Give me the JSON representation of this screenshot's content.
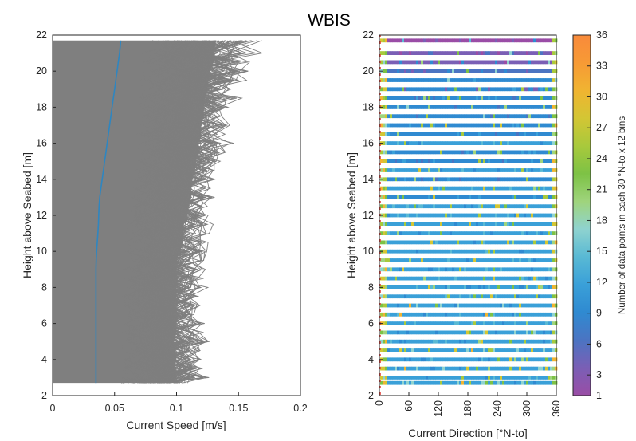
{
  "figure_title": "WBIS",
  "chart_data": [
    {
      "type": "line",
      "xlabel": "Current Speed [m/s]",
      "ylabel": "Height above Seabed [m]",
      "xlim": [
        0,
        0.2
      ],
      "ylim": [
        2,
        22
      ],
      "xticks": [
        0,
        0.05,
        0.1,
        0.15,
        0.2
      ],
      "xtick_labels": [
        "0",
        "0.05",
        "0.1",
        "0.15",
        "0.2"
      ],
      "yticks": [
        2,
        4,
        6,
        8,
        10,
        12,
        14,
        16,
        18,
        20,
        22
      ],
      "yticks_labels": [
        "2",
        "4",
        "6",
        "8",
        "10",
        "12",
        "14",
        "16",
        "18",
        "20",
        "22"
      ],
      "grid": false,
      "height_levels": [
        2.7,
        3.0,
        3.5,
        4.0,
        4.5,
        5.0,
        5.5,
        6.0,
        6.5,
        7.0,
        7.5,
        8.0,
        8.5,
        9.0,
        9.5,
        10.0,
        10.5,
        11.0,
        11.5,
        12.0,
        12.5,
        13.0,
        13.5,
        14.0,
        14.5,
        15.0,
        15.5,
        16.0,
        16.5,
        17.0,
        17.5,
        18.0,
        18.5,
        19.0,
        19.5,
        20.0,
        20.5,
        21.0,
        21.7
      ],
      "series": [
        {
          "kind": "mean-profile",
          "color": "#2e86c1",
          "x": [
            0.035,
            0.035,
            0.035,
            0.035,
            0.035,
            0.035,
            0.035,
            0.035,
            0.035,
            0.035,
            0.035,
            0.035,
            0.035,
            0.035,
            0.0352,
            0.0355,
            0.036,
            0.0365,
            0.037,
            0.0372,
            0.0375,
            0.038,
            0.039,
            0.04,
            0.041,
            0.042,
            0.043,
            0.044,
            0.045,
            0.046,
            0.047,
            0.048,
            0.049,
            0.05,
            0.051,
            0.052,
            0.053,
            0.054,
            0.055
          ],
          "y": [
            2.7,
            3.0,
            3.5,
            4.0,
            4.5,
            5.0,
            5.5,
            6.0,
            6.5,
            7.0,
            7.5,
            8.0,
            8.5,
            9.0,
            9.5,
            10.0,
            10.5,
            11.0,
            11.5,
            12.0,
            12.5,
            13.0,
            13.5,
            14.0,
            14.5,
            15.0,
            15.5,
            16.0,
            16.5,
            17.0,
            17.5,
            18.0,
            18.5,
            19.0,
            19.5,
            20.0,
            20.5,
            21.0,
            21.7
          ]
        },
        {
          "kind": "individual-profiles-envelope",
          "color": "#7f7f7f",
          "x_min": 0,
          "x_dense_edge": [
            0.098,
            0.1,
            0.098,
            0.1,
            0.099,
            0.098,
            0.1,
            0.1,
            0.102,
            0.098,
            0.1,
            0.1,
            0.101,
            0.1,
            0.1,
            0.103,
            0.105,
            0.105,
            0.106,
            0.108,
            0.11,
            0.112,
            0.112,
            0.113,
            0.115,
            0.116,
            0.118,
            0.118,
            0.12,
            0.12,
            0.122,
            0.122,
            0.123,
            0.125,
            0.126,
            0.127,
            0.13,
            0.13,
            0.132
          ],
          "x_outer_max": [
            0.11,
            0.135,
            0.13,
            0.125,
            0.13,
            0.135,
            0.125,
            0.128,
            0.12,
            0.125,
            0.13,
            0.13,
            0.128,
            0.135,
            0.13,
            0.13,
            0.13,
            0.13,
            0.13,
            0.13,
            0.128,
            0.135,
            0.132,
            0.135,
            0.14,
            0.14,
            0.145,
            0.15,
            0.14,
            0.15,
            0.145,
            0.15,
            0.16,
            0.15,
            0.16,
            0.17,
            0.165,
            0.17,
            0.175
          ]
        }
      ]
    },
    {
      "type": "heatmap",
      "xlabel": "Current Direction [°N-to]",
      "ylabel": "Height above Seabed [m]",
      "xlim": [
        0,
        360
      ],
      "ylim": [
        2,
        22
      ],
      "xticks": [
        0,
        60,
        120,
        180,
        240,
        300,
        360
      ],
      "xtick_labels": [
        "0",
        "60",
        "120",
        "180",
        "240",
        "300",
        "360"
      ],
      "yticks": [
        2,
        4,
        6,
        8,
        10,
        12,
        14,
        16,
        18,
        20,
        22
      ],
      "ytick_labels": [
        "2",
        "4",
        "6",
        "8",
        "10",
        "12",
        "14",
        "16",
        "18",
        "20",
        "22"
      ],
      "direction_bin_width": 30,
      "height_bin_count": 12,
      "rows_y": [
        2.7,
        3.0,
        3.5,
        4.0,
        4.5,
        5.0,
        5.5,
        6.0,
        6.5,
        7.0,
        7.5,
        8.0,
        8.5,
        9.0,
        9.5,
        10.0,
        10.5,
        11.0,
        11.5,
        12.0,
        12.5,
        13.0,
        13.5,
        14.0,
        14.5,
        15.0,
        15.5,
        16.0,
        16.5,
        17.0,
        17.5,
        18.0,
        18.5,
        19.0,
        19.5,
        20.0,
        20.5,
        21.0,
        21.7
      ],
      "row_typical_count": [
        13,
        12,
        13,
        12,
        13,
        12,
        13,
        11,
        12,
        13,
        12,
        11,
        12,
        12,
        11,
        12,
        11,
        12,
        11,
        11,
        12,
        10,
        11,
        10,
        11,
        10,
        10,
        11,
        9,
        10,
        9,
        9,
        9,
        8,
        8,
        7,
        5,
        4,
        1
      ],
      "edge_count": 24,
      "colorbar": {
        "label": "Number of data points in each 30 °N-to x 12 bins",
        "min": 1,
        "max": 36,
        "ticks": [
          1,
          3,
          6,
          9,
          12,
          15,
          18,
          21,
          24,
          27,
          30,
          33,
          36
        ],
        "tick_labels": [
          "1",
          "3",
          "6",
          "9",
          "12",
          "15",
          "18",
          "21",
          "24",
          "27",
          "30",
          "33",
          "36"
        ],
        "colors": [
          "#9a4da6",
          "#7a5fb5",
          "#4b74c2",
          "#2f8ad1",
          "#3aa0d8",
          "#59b9d4",
          "#8fd3cf",
          "#9fd47d",
          "#7dc245",
          "#a8c93c",
          "#d3c634",
          "#f0b431",
          "#f79a35",
          "#f88a3b"
        ]
      }
    }
  ]
}
